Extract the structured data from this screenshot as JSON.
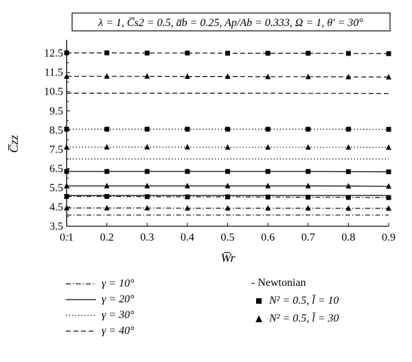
{
  "chart_data": {
    "type": "line",
    "title": "λ = 1, C̅s2 = 0.5, a̅b = 0.25, Ap/Ab = 0.333, Ω = 1, θ′ = 30°",
    "xlabel": "W̅r",
    "ylabel": "C̅zz",
    "xlim": [
      0.1,
      0.9
    ],
    "ylim": [
      3.5,
      13.2
    ],
    "x_ticks": [
      "0.1",
      "0.2",
      "0.3",
      "0.4",
      "0.5",
      "0.6",
      "0.7",
      "0.8",
      "0.9"
    ],
    "y_ticks": [
      "3.5",
      "4.5",
      "5.5",
      "6.5",
      "7.5",
      "8.5",
      "9.5",
      "10.5",
      "11.5",
      "12.5"
    ],
    "grid": false,
    "x": [
      0.1,
      0.2,
      0.3,
      0.4,
      0.5,
      0.6,
      0.7,
      0.8,
      0.9
    ],
    "series": [
      {
        "name": "γ = 10°",
        "style": "dashdot",
        "variant": "Newtonian",
        "values": [
          4.08,
          4.08,
          4.08,
          4.08,
          4.08,
          4.08,
          4.08,
          4.08,
          4.08
        ]
      },
      {
        "name": "γ = 10°",
        "style": "dashdot",
        "variant": "N² = 0.5, l̄ = 10",
        "marker": "square",
        "values": [
          5.05,
          5.05,
          5.04,
          5.03,
          5.03,
          5.02,
          5.01,
          5.0,
          4.99
        ]
      },
      {
        "name": "γ = 10°",
        "style": "dashdot",
        "variant": "N² = 0.5, l̄ = 30",
        "marker": "triangle",
        "values": [
          4.45,
          4.45,
          4.45,
          4.44,
          4.44,
          4.44,
          4.44,
          4.43,
          4.43
        ]
      },
      {
        "name": "γ = 20°",
        "style": "solid",
        "variant": "Newtonian",
        "values": [
          5.1,
          5.1,
          5.1,
          5.1,
          5.1,
          5.1,
          5.1,
          5.1,
          5.1
        ]
      },
      {
        "name": "γ = 20°",
        "style": "solid",
        "variant": "N² = 0.5, l̄ = 10",
        "marker": "square",
        "values": [
          6.35,
          6.35,
          6.35,
          6.35,
          6.35,
          6.35,
          6.35,
          6.34,
          6.33
        ]
      },
      {
        "name": "γ = 20°",
        "style": "solid",
        "variant": "N² = 0.5, l̄ = 30",
        "marker": "triangle",
        "values": [
          5.6,
          5.6,
          5.6,
          5.6,
          5.6,
          5.6,
          5.6,
          5.59,
          5.58
        ]
      },
      {
        "name": "γ = 30°",
        "style": "dotted",
        "variant": "Newtonian",
        "values": [
          7.0,
          7.0,
          7.0,
          7.0,
          7.0,
          7.0,
          7.0,
          7.0,
          7.0
        ]
      },
      {
        "name": "γ = 30°",
        "style": "dotted",
        "variant": "N² = 0.5, l̄ = 10",
        "marker": "square",
        "values": [
          8.55,
          8.55,
          8.55,
          8.55,
          8.55,
          8.55,
          8.55,
          8.55,
          8.54
        ]
      },
      {
        "name": "γ = 30°",
        "style": "dotted",
        "variant": "N² = 0.5, l̄ = 30",
        "marker": "triangle",
        "values": [
          7.62,
          7.62,
          7.62,
          7.62,
          7.61,
          7.61,
          7.61,
          7.61,
          7.6
        ]
      },
      {
        "name": "γ = 40°",
        "style": "dashed",
        "variant": "Newtonian",
        "values": [
          10.42,
          10.42,
          10.42,
          10.42,
          10.42,
          10.42,
          10.41,
          10.41,
          10.4
        ]
      },
      {
        "name": "γ = 40°",
        "style": "dashed",
        "variant": "N² = 0.5, l̄ = 10",
        "marker": "square",
        "values": [
          12.52,
          12.52,
          12.51,
          12.51,
          12.5,
          12.5,
          12.5,
          12.49,
          12.48
        ]
      },
      {
        "name": "γ = 40°",
        "style": "dashed",
        "variant": "N² = 0.5, l̄ = 30",
        "marker": "triangle",
        "values": [
          11.3,
          11.3,
          11.3,
          11.29,
          11.29,
          11.28,
          11.28,
          11.27,
          11.26
        ]
      }
    ],
    "legend_left": [
      {
        "label": "γ = 10°",
        "style": "dashdot"
      },
      {
        "label": "γ = 20°",
        "style": "solid"
      },
      {
        "label": "γ = 30°",
        "style": "dotted"
      },
      {
        "label": "γ = 40°",
        "style": "dashed"
      }
    ],
    "legend_right": [
      {
        "label": "- Newtonian",
        "marker": "none"
      },
      {
        "label": "N² = 0.5, l̄ = 10",
        "marker": "square"
      },
      {
        "label": "N² = 0.5, l̄ = 30",
        "marker": "triangle"
      }
    ]
  }
}
